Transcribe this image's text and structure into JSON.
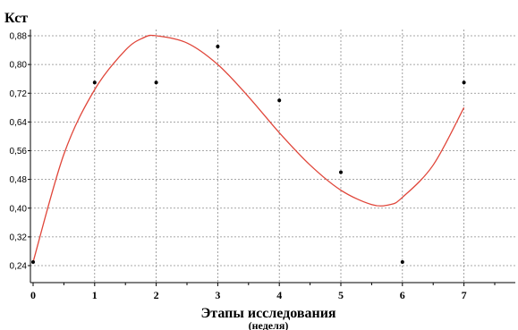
{
  "chart_data": {
    "type": "scatter",
    "ylabel": "Кст",
    "xlabel": "Этапы исследования",
    "xlabel_sub": "(неделя)",
    "xlim": [
      0,
      7.85
    ],
    "ylim": [
      0.22,
      0.9
    ],
    "x_ticks": [
      0,
      1,
      2,
      3,
      4,
      5,
      6,
      7
    ],
    "y_ticks": [
      0.24,
      0.32,
      0.4,
      0.48,
      0.56,
      0.64,
      0.72,
      0.8,
      0.88
    ],
    "y_tick_labels": [
      "0,24",
      "0,32",
      "0,40",
      "0,48",
      "0,56",
      "0,64",
      "0,72",
      "0,80",
      "0,88"
    ],
    "grid": true,
    "points": {
      "x": [
        0,
        1,
        2,
        3,
        4,
        5,
        6,
        7
      ],
      "y": [
        0.25,
        0.75,
        0.75,
        0.85,
        0.7,
        0.5,
        0.25,
        0.75
      ],
      "color": "#000000"
    },
    "fit_curve": {
      "color": "#e0463a",
      "x": [
        0,
        0.5,
        1,
        1.5,
        1.8,
        2.0,
        2.5,
        3.0,
        3.5,
        4.0,
        4.5,
        5.0,
        5.5,
        5.8,
        6.0,
        6.5,
        7.0
      ],
      "y": [
        0.25,
        0.55,
        0.73,
        0.84,
        0.875,
        0.88,
        0.86,
        0.8,
        0.71,
        0.61,
        0.52,
        0.45,
        0.41,
        0.41,
        0.43,
        0.52,
        0.68
      ]
    }
  }
}
